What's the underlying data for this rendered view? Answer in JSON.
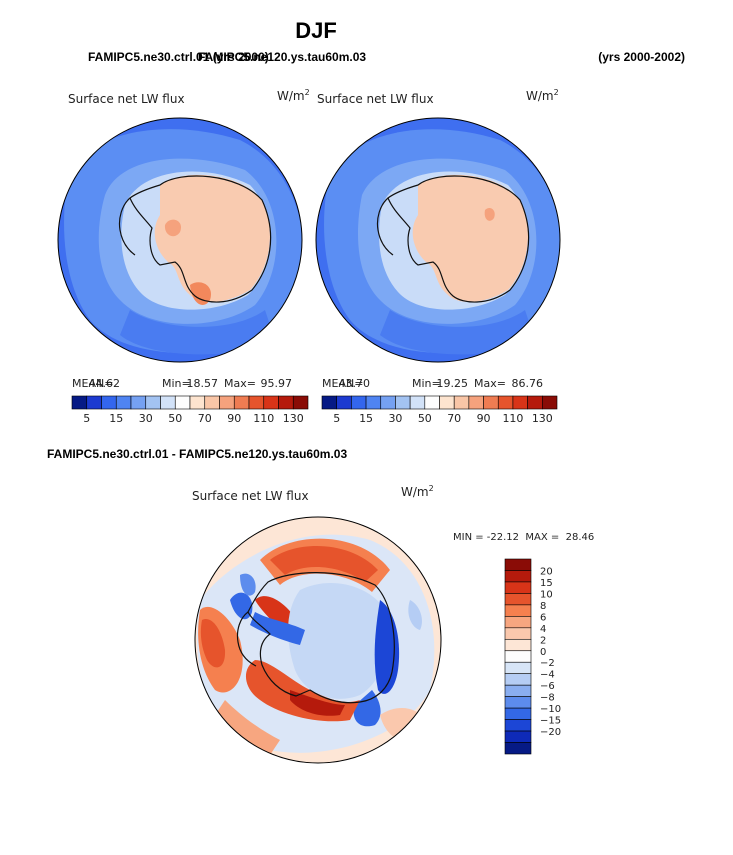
{
  "header": {
    "title": "DJF",
    "case1": "FAMIPC5.ne30.ctrl.01 (yrs 2000)",
    "case2": "FAMIPC5.ne120.ys.tau60m.03",
    "years": "(yrs 2000-2002)",
    "diff_title": "FAMIPC5.ne30.ctrl.01 - FAMIPC5.ne120.ys.tau60m.03"
  },
  "chart_data": [
    {
      "type": "heatmap",
      "projection": "south-polar-stereographic",
      "title": "Surface net LW flux",
      "units": "W/m",
      "units_exp": "2",
      "stats": {
        "mean_label": "MEAN=",
        "mean": "44.62",
        "min_label": "Min=",
        "min": "18.57",
        "max_label": "Max=",
        "max": "95.97"
      },
      "colorbar_labels": [
        "5",
        "15",
        "30",
        "50",
        "70",
        "90",
        "110",
        "130"
      ],
      "colorbar_colors": [
        "#061a85",
        "#1c3ad0",
        "#3366ee",
        "#4f84f2",
        "#75a1f2",
        "#a3c3f2",
        "#d2e2f8",
        "#fdfdfd",
        "#fde4cf",
        "#f9c6a7",
        "#f5a27d",
        "#ef7c52",
        "#e6542c",
        "#d83418",
        "#b51a0c",
        "#8a0c06"
      ]
    },
    {
      "type": "heatmap",
      "projection": "south-polar-stereographic",
      "title": "Surface net LW flux",
      "units": "W/m",
      "units_exp": "2",
      "stats": {
        "mean_label": "MEAN=",
        "mean": "43.70",
        "min_label": "Min=",
        "min": "19.25",
        "max_label": "Max=",
        "max": "86.76"
      },
      "colorbar_labels": [
        "5",
        "15",
        "30",
        "50",
        "70",
        "90",
        "110",
        "130"
      ],
      "colorbar_colors": [
        "#061a85",
        "#1c3ad0",
        "#3366ee",
        "#4f84f2",
        "#75a1f2",
        "#a3c3f2",
        "#d2e2f8",
        "#fdfdfd",
        "#fde4cf",
        "#f9c6a7",
        "#f5a27d",
        "#ef7c52",
        "#e6542c",
        "#d83418",
        "#b51a0c",
        "#8a0c06"
      ]
    },
    {
      "type": "heatmap",
      "projection": "south-polar-stereographic",
      "title": "Surface net LW flux",
      "units": "W/m",
      "units_exp": "2",
      "minmax": "MIN = -22.12  MAX =  28.46",
      "colorbar_labels": [
        "20",
        "15",
        "10",
        "8",
        "6",
        "4",
        "2",
        "0",
        "−2",
        "−4",
        "−6",
        "−8",
        "−10",
        "−15",
        "−20"
      ],
      "colorbar_colors": [
        "#8a0c06",
        "#b51a0c",
        "#d83418",
        "#e6542c",
        "#f5804f",
        "#f7a680",
        "#fac8ad",
        "#fde6d6",
        "#fdfdfd",
        "#d7e5f7",
        "#b5cdf4",
        "#8aaef0",
        "#5d8ced",
        "#3368e6",
        "#1c46d6",
        "#0e2ab8",
        "#061a85"
      ]
    }
  ]
}
